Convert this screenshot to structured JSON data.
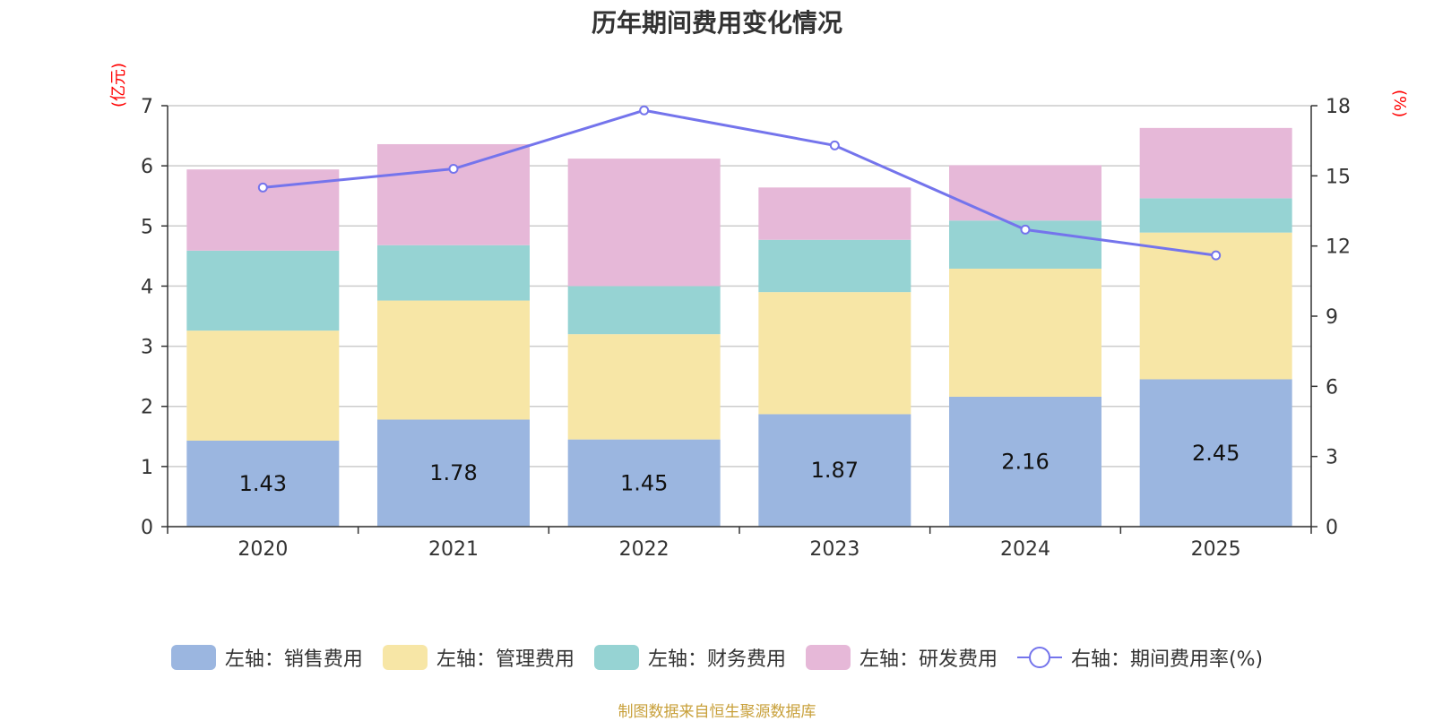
{
  "chart_data": {
    "type": "bar",
    "title": "历年期间费用变化情况",
    "categories": [
      "2020",
      "2021",
      "2022",
      "2023",
      "2024",
      "2025"
    ],
    "left_axis": {
      "unit": "(亿元)",
      "ylim": [
        0,
        7
      ],
      "ticks": [
        0,
        1,
        2,
        3,
        4,
        5,
        6,
        7
      ]
    },
    "right_axis": {
      "unit": "(%)",
      "ylim": [
        0,
        18
      ],
      "ticks": [
        0,
        3,
        6,
        9,
        12,
        15,
        18
      ]
    },
    "series": [
      {
        "name": "左轴：销售费用",
        "kind": "stacked-bar",
        "axis": "left",
        "color": "#9bb6e0",
        "values": [
          1.43,
          1.78,
          1.45,
          1.87,
          2.16,
          2.45
        ],
        "data_labels": true
      },
      {
        "name": "左轴：管理费用",
        "kind": "stacked-bar",
        "axis": "left",
        "color": "#f7e6a6",
        "values": [
          1.83,
          1.98,
          1.75,
          2.03,
          2.13,
          2.44
        ]
      },
      {
        "name": "左轴：财务费用",
        "kind": "stacked-bar",
        "axis": "left",
        "color": "#96d3d3",
        "values": [
          1.33,
          0.92,
          0.8,
          0.87,
          0.8,
          0.57
        ]
      },
      {
        "name": "左轴：研发费用",
        "kind": "stacked-bar",
        "axis": "left",
        "color": "#e6b8d8",
        "values": [
          1.35,
          1.68,
          2.12,
          0.87,
          0.92,
          1.17
        ]
      },
      {
        "name": "右轴：期间费用率(%)",
        "kind": "line",
        "axis": "right",
        "color": "#7474ec",
        "values": [
          14.5,
          15.3,
          17.8,
          16.3,
          12.7,
          11.6
        ]
      }
    ],
    "legend_position": "bottom-center",
    "grid": true
  },
  "footer": "制图数据来自恒生聚源数据库"
}
